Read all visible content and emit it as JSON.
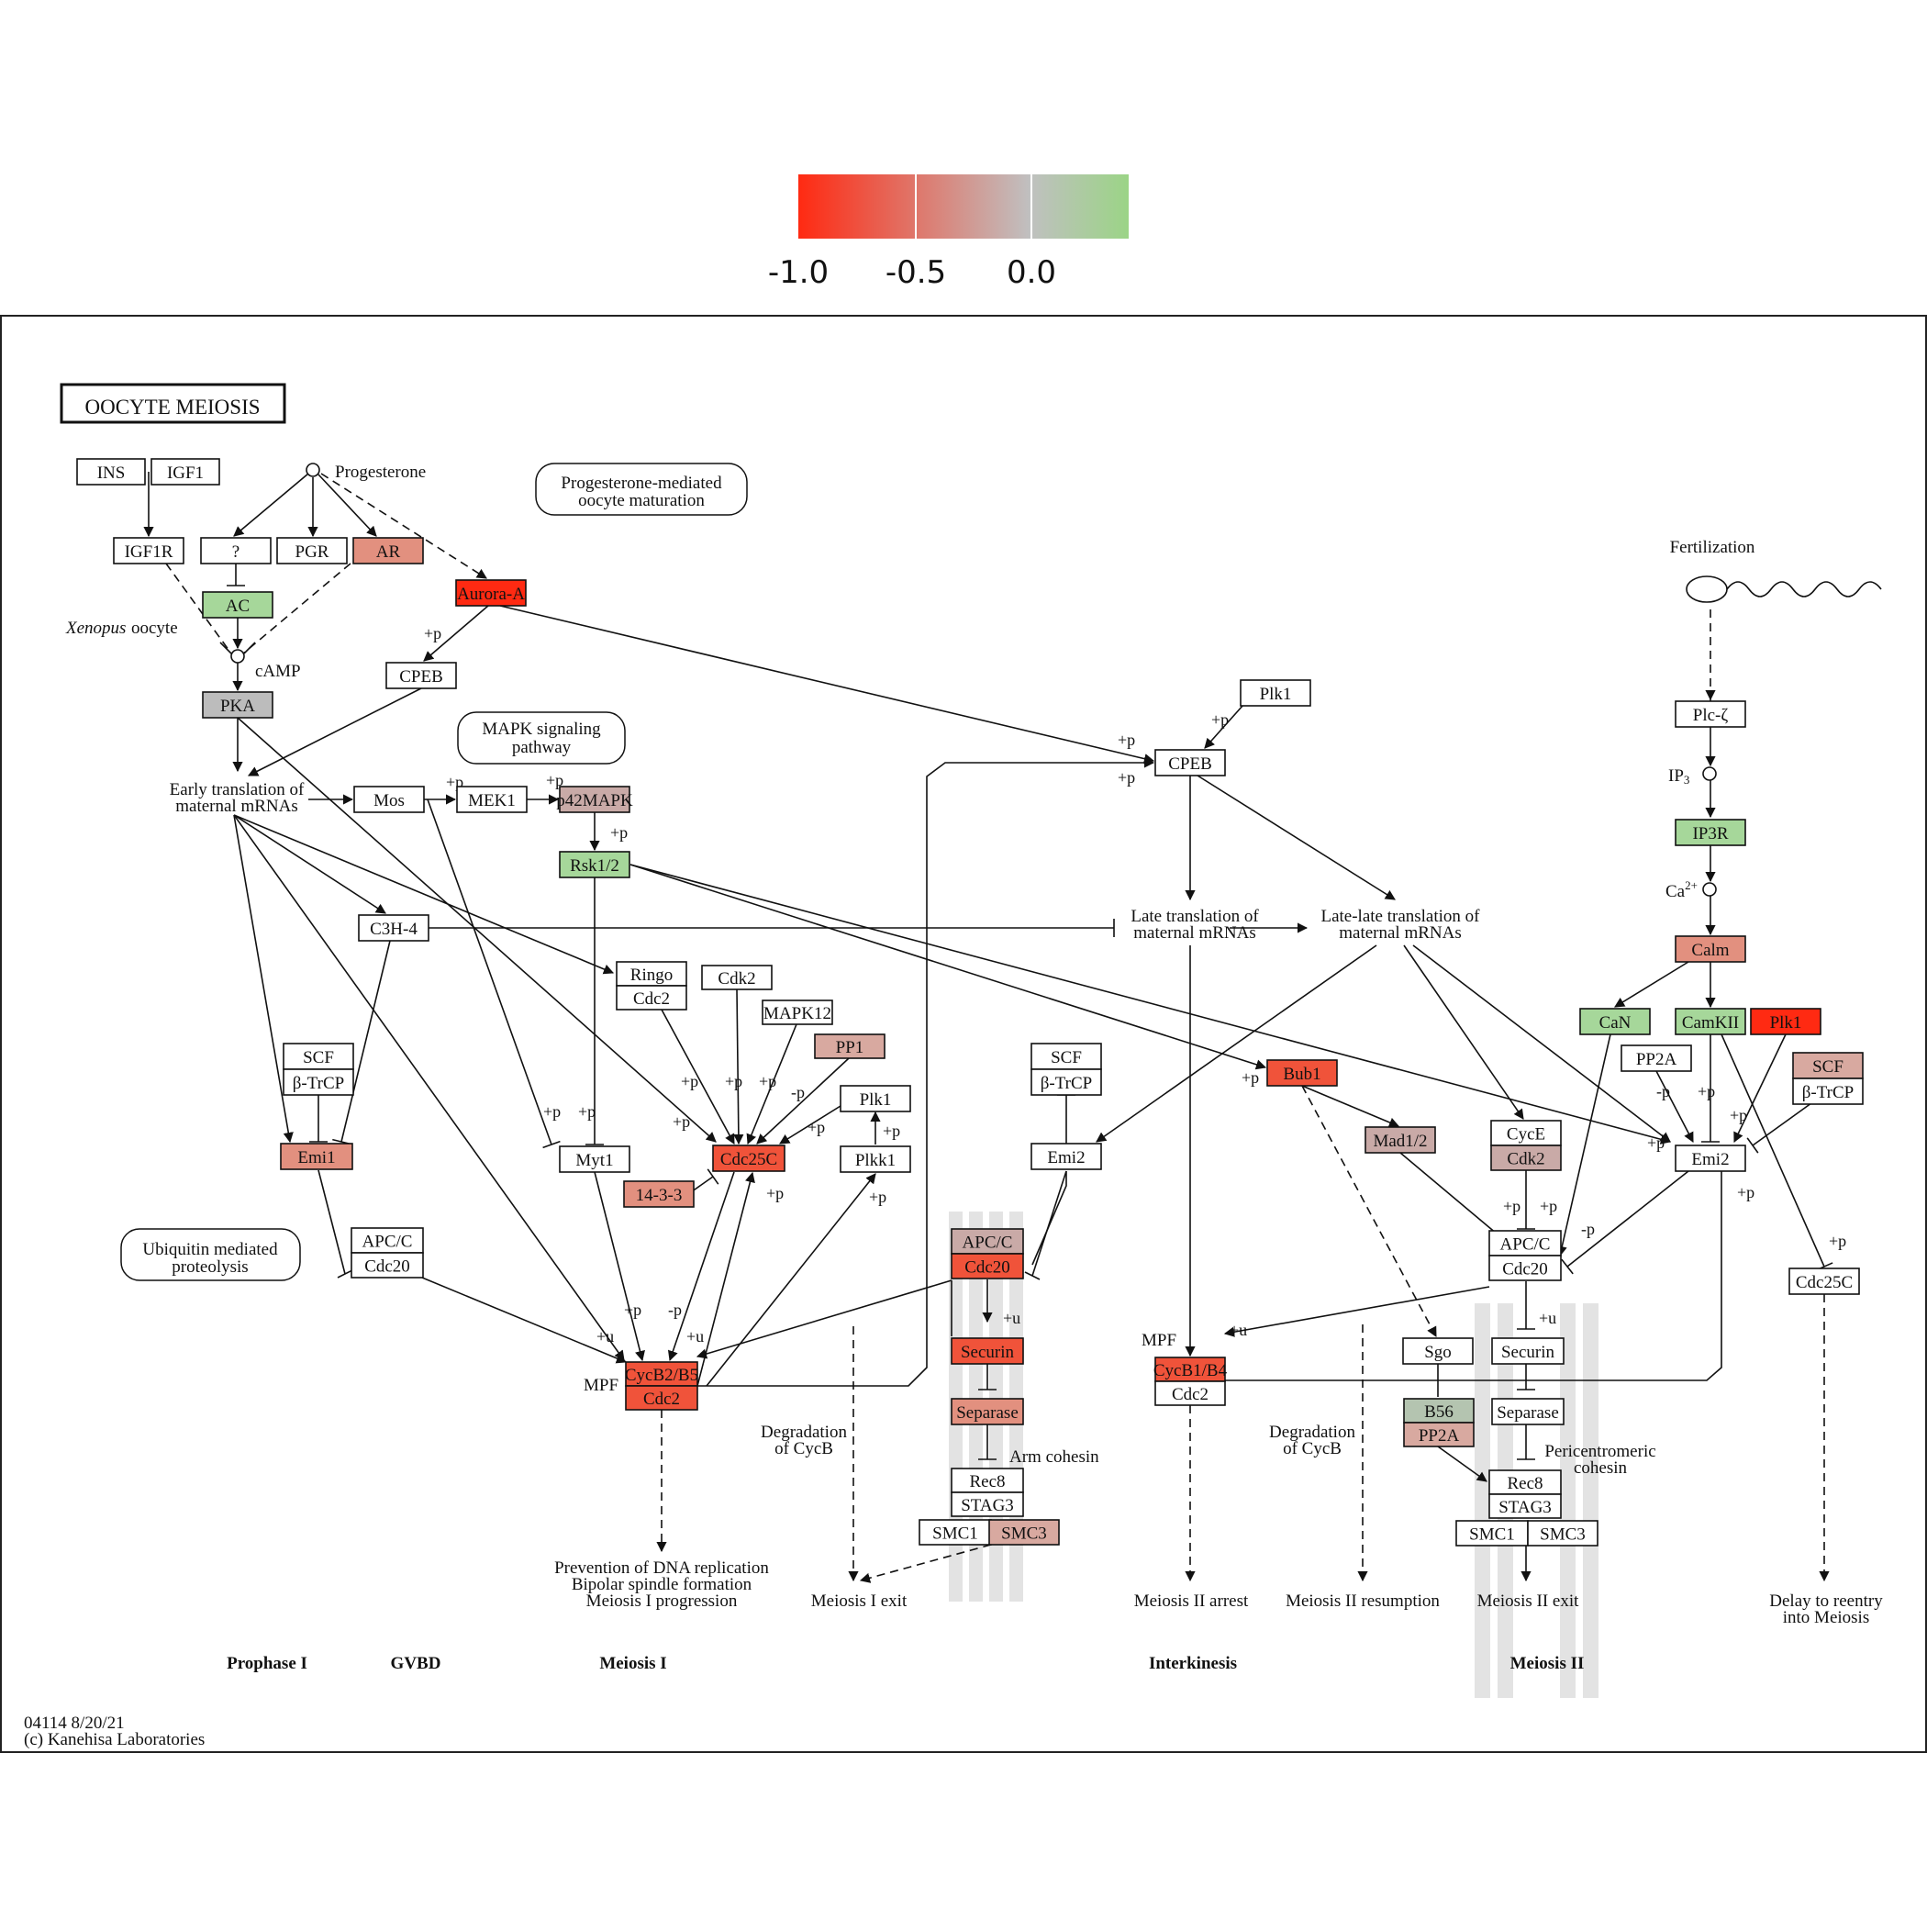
{
  "legend": {
    "ticks": [
      "-1.0",
      "-0.5",
      "0.0"
    ],
    "tick_values": [
      -1.0,
      -0.5,
      0.0
    ],
    "range": [
      -1.0,
      0.3
    ],
    "colors": {
      "low": "#ff2a12",
      "mid": "#c0c0c0",
      "high": "#9bd486"
    }
  },
  "title": "OOCYTE  MEIOSIS",
  "footer": {
    "line1": "04114 8/20/21",
    "line2": "(c) Kanehisa Laboratories"
  },
  "colors": {
    "green": "#a6d79a",
    "gray": "#bcbcbc",
    "gray_pink": "#c9aaa7",
    "red": "#ff2a12",
    "red_orange": "#f0533a",
    "salmon": "#e2907f",
    "light_salmon": "#d8a9a0",
    "gray_green": "#b4c4b0"
  },
  "nodes": {
    "ins": {
      "label": "INS",
      "color": ""
    },
    "igf1": {
      "label": "IGF1",
      "color": ""
    },
    "igf1r": {
      "label": "IGF1R",
      "color": ""
    },
    "q": {
      "label": "?",
      "color": ""
    },
    "pgr": {
      "label": "PGR",
      "color": ""
    },
    "ar": {
      "label": "AR",
      "color": "salmon"
    },
    "ac": {
      "label": "AC",
      "color": "green"
    },
    "aurora_a": {
      "label": "Aurora-A",
      "color": "red"
    },
    "cpeb1": {
      "label": "CPEB",
      "color": ""
    },
    "pka": {
      "label": "PKA",
      "color": "gray"
    },
    "mos": {
      "label": "Mos",
      "color": ""
    },
    "mek1": {
      "label": "MEK1",
      "color": ""
    },
    "p42mapk": {
      "label": "p42MAPK",
      "color": "gray_pink"
    },
    "rsk12": {
      "label": "Rsk1/2",
      "color": "green"
    },
    "c3h4": {
      "label": "C3H-4",
      "color": ""
    },
    "ringo": {
      "label": "Ringo",
      "color": ""
    },
    "cdc2_ringo": {
      "label": "Cdc2",
      "color": ""
    },
    "cdk2": {
      "label": "Cdk2",
      "color": ""
    },
    "mapk12": {
      "label": "MAPK12",
      "color": ""
    },
    "pp1": {
      "label": "PP1",
      "color": "light_salmon"
    },
    "plk1_a": {
      "label": "Plk1",
      "color": ""
    },
    "plkk1": {
      "label": "Plkk1",
      "color": ""
    },
    "scf_a": {
      "label": "SCF",
      "color": ""
    },
    "btrcp_a": {
      "label": "β-TrCP",
      "color": ""
    },
    "emi1": {
      "label": "Emi1",
      "color": "salmon"
    },
    "myt1": {
      "label": "Myt1",
      "color": ""
    },
    "cdc25c_a": {
      "label": "Cdc25C",
      "color": "red_orange"
    },
    "p1433": {
      "label": "14-3-3",
      "color": "salmon"
    },
    "apcc_a": {
      "label": "APC/C",
      "color": ""
    },
    "cdc20_a": {
      "label": "Cdc20",
      "color": ""
    },
    "cycb2b5": {
      "label": "CycB2/B5",
      "color": "red_orange"
    },
    "cdc2_mpf": {
      "label": "Cdc2",
      "color": "red_orange"
    },
    "plk1_b": {
      "label": "Plk1",
      "color": ""
    },
    "cpeb2": {
      "label": "CPEB",
      "color": ""
    },
    "scf_b": {
      "label": "SCF",
      "color": ""
    },
    "btrcp_b": {
      "label": "β-TrCP",
      "color": ""
    },
    "emi2_a": {
      "label": "Emi2",
      "color": ""
    },
    "apcc_b": {
      "label": "APC/C",
      "color": "gray_pink"
    },
    "cdc20_b": {
      "label": "Cdc20",
      "color": "red_orange"
    },
    "securin_a": {
      "label": "Securin",
      "color": "red_orange"
    },
    "separase_a": {
      "label": "Separase",
      "color": "salmon"
    },
    "rec8_a": {
      "label": "Rec8",
      "color": ""
    },
    "stag3_a": {
      "label": "STAG3",
      "color": ""
    },
    "smc1_a": {
      "label": "SMC1",
      "color": ""
    },
    "smc3_a": {
      "label": "SMC3",
      "color": "light_salmon"
    },
    "bub1": {
      "label": "Bub1",
      "color": "red_orange"
    },
    "mad12": {
      "label": "Mad1/2",
      "color": "gray_pink"
    },
    "cyce": {
      "label": "CycE",
      "color": ""
    },
    "cdk2_b": {
      "label": "Cdk2",
      "color": "gray_pink"
    },
    "apcc_c": {
      "label": "APC/C",
      "color": ""
    },
    "cdc20_c": {
      "label": "Cdc20",
      "color": ""
    },
    "cycb1b4": {
      "label": "CycB1/B4",
      "color": "red_orange"
    },
    "cdc2_b": {
      "label": "Cdc2",
      "color": ""
    },
    "sgo": {
      "label": "Sgo",
      "color": ""
    },
    "securin_b": {
      "label": "Securin",
      "color": ""
    },
    "b56": {
      "label": "B56",
      "color": "gray_green"
    },
    "pp2a_a": {
      "label": "PP2A",
      "color": "light_salmon"
    },
    "separase_b": {
      "label": "Separase",
      "color": ""
    },
    "rec8_b": {
      "label": "Rec8",
      "color": ""
    },
    "stag3_b": {
      "label": "STAG3",
      "color": ""
    },
    "smc1_b": {
      "label": "SMC1",
      "color": ""
    },
    "smc3_b": {
      "label": "SMC3",
      "color": ""
    },
    "plc": {
      "label": "Plc-ζ",
      "color": ""
    },
    "ip3r": {
      "label": "IP3R",
      "color": "green"
    },
    "calm": {
      "label": "Calm",
      "color": "salmon"
    },
    "can": {
      "label": "CaN",
      "color": "green"
    },
    "camkii": {
      "label": "CamKII",
      "color": "green"
    },
    "plk1_c": {
      "label": "Plk1",
      "color": "red"
    },
    "pp2a_b": {
      "label": "PP2A",
      "color": ""
    },
    "scf_c": {
      "label": "SCF",
      "color": "light_salmon"
    },
    "btrcp_c": {
      "label": "β-TrCP",
      "color": ""
    },
    "emi2_b": {
      "label": "Emi2",
      "color": ""
    },
    "cdc25c_b": {
      "label": "Cdc25C",
      "color": ""
    }
  },
  "map_boxes": {
    "prog_mat": {
      "line1": "Progesterone-mediated",
      "line2": "oocyte maturation"
    },
    "mapk_sig": {
      "line1": "MAPK signaling",
      "line2": "pathway"
    },
    "ubiq": {
      "line1": "Ubiquitin mediated",
      "line2": "proteolysis"
    }
  },
  "labels": {
    "progesterone": "Progesterone",
    "xenopus": "Xenopus",
    "oocyte": "oocyte",
    "camp": "cAMP",
    "early_1": "Early translation of",
    "early_2": "maternal mRNAs",
    "late_1": "Late translation of",
    "late_2": "maternal mRNAs",
    "latelate_1": "Late-late translation of",
    "latelate_2": "maternal mRNAs",
    "fertilization": "Fertilization",
    "ip3": "IP",
    "ip3_sub": "3",
    "ca": "Ca",
    "ca_sup": "2+",
    "mpf_1": "MPF",
    "mpf_2": "MPF",
    "deg_1a": "Degradation",
    "deg_1b": "of CycB",
    "deg_2a": "Degradation",
    "deg_2b": "of CycB",
    "arm_cohesin": "Arm cohesin",
    "peri_1": "Pericentromeric",
    "peri_2": "cohesin",
    "prevent_1": "Prevention of DNA replication",
    "prevent_2": "Bipolar spindle formation",
    "prevent_3": "Meiosis I progression",
    "meiosis1_exit": "Meiosis I exit",
    "meiosis2_arrest": "Meiosis II arrest",
    "meiosis2_resumption": "Meiosis II resumption",
    "meiosis2_exit": "Meiosis II exit",
    "reentry_1": "Delay to reentry",
    "reentry_2": "into Meiosis"
  },
  "phases": [
    "Prophase I",
    "GVBD",
    "Meiosis I",
    "Interkinesis",
    "Meiosis II"
  ],
  "marks": {
    "p": "+p",
    "mp": "-p",
    "u": "+u"
  }
}
